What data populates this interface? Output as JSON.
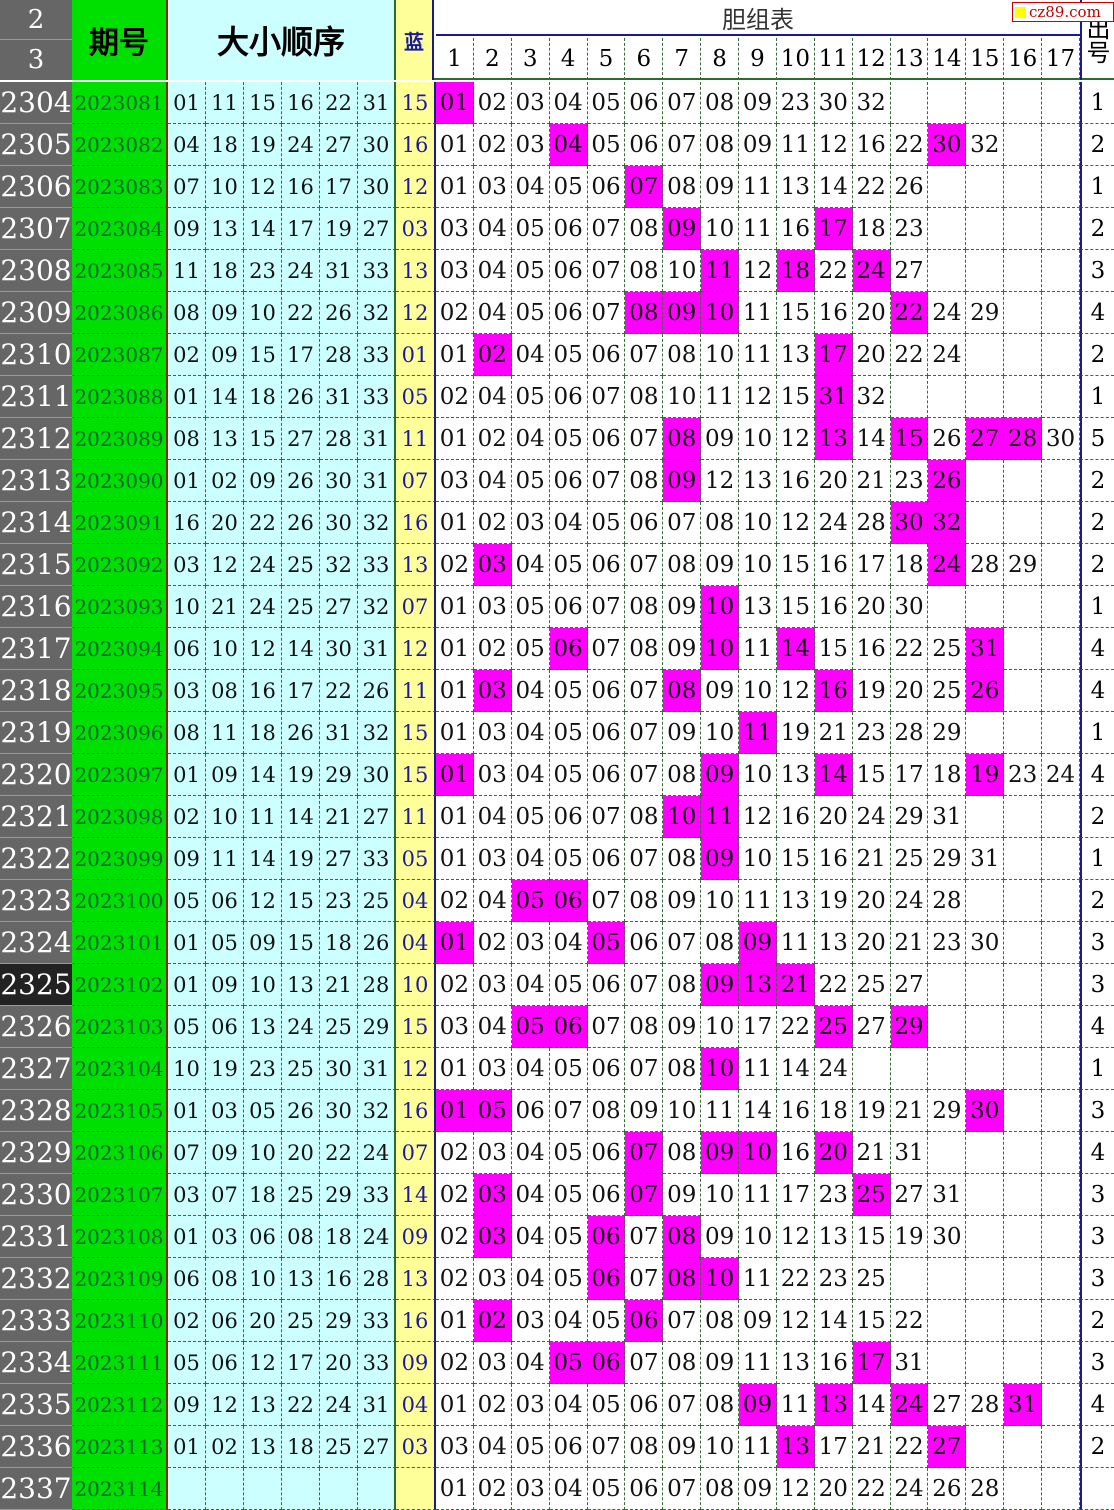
{
  "header": {
    "row_top": "2",
    "row_bottom": "3",
    "period": "期号",
    "sorted": "大小顺序",
    "blue": "蓝",
    "dan_table": "胆组表",
    "hits_col": "出号",
    "watermark": "cz89.com",
    "dan_cols": [
      "1",
      "2",
      "3",
      "4",
      "5",
      "6",
      "7",
      "8",
      "9",
      "10",
      "11",
      "12",
      "13",
      "14",
      "15",
      "16",
      "17"
    ]
  },
  "colors": {
    "period_bg": "#00e000",
    "sorted_bg": "#ccffff",
    "blue_bg": "#ffff99",
    "hit": "#ff00ff",
    "rownum_bg": "#666666",
    "selected_row_bg": "#222222"
  },
  "selected_row": "2325",
  "rows": [
    {
      "n": "2304",
      "p": "2023081",
      "d": [
        "01",
        "11",
        "15",
        "16",
        "22",
        "31"
      ],
      "b": "15",
      "dz": [
        "01",
        "02",
        "03",
        "04",
        "05",
        "06",
        "07",
        "08",
        "09",
        "23",
        "30",
        "32"
      ],
      "h": "1"
    },
    {
      "n": "2305",
      "p": "2023082",
      "d": [
        "04",
        "18",
        "19",
        "24",
        "27",
        "30"
      ],
      "b": "16",
      "dz": [
        "01",
        "02",
        "03",
        "04",
        "05",
        "06",
        "07",
        "08",
        "09",
        "11",
        "12",
        "16",
        "22",
        "30",
        "32"
      ],
      "h": "2"
    },
    {
      "n": "2306",
      "p": "2023083",
      "d": [
        "07",
        "10",
        "12",
        "16",
        "17",
        "30"
      ],
      "b": "12",
      "dz": [
        "01",
        "03",
        "04",
        "05",
        "06",
        "07",
        "08",
        "09",
        "11",
        "13",
        "14",
        "22",
        "26"
      ],
      "h": "1"
    },
    {
      "n": "2307",
      "p": "2023084",
      "d": [
        "09",
        "13",
        "14",
        "17",
        "19",
        "27"
      ],
      "b": "03",
      "dz": [
        "03",
        "04",
        "05",
        "06",
        "07",
        "08",
        "09",
        "10",
        "11",
        "16",
        "17",
        "18",
        "23"
      ],
      "h": "2"
    },
    {
      "n": "2308",
      "p": "2023085",
      "d": [
        "11",
        "18",
        "23",
        "24",
        "31",
        "33"
      ],
      "b": "13",
      "dz": [
        "03",
        "04",
        "05",
        "06",
        "07",
        "08",
        "10",
        "11",
        "12",
        "18",
        "22",
        "24",
        "27"
      ],
      "h": "3"
    },
    {
      "n": "2309",
      "p": "2023086",
      "d": [
        "08",
        "09",
        "10",
        "22",
        "26",
        "32"
      ],
      "b": "12",
      "dz": [
        "02",
        "04",
        "05",
        "06",
        "07",
        "08",
        "09",
        "10",
        "11",
        "15",
        "16",
        "20",
        "22",
        "24",
        "29"
      ],
      "h": "4"
    },
    {
      "n": "2310",
      "p": "2023087",
      "d": [
        "02",
        "09",
        "15",
        "17",
        "28",
        "33"
      ],
      "b": "01",
      "dz": [
        "01",
        "02",
        "04",
        "05",
        "06",
        "07",
        "08",
        "10",
        "11",
        "13",
        "17",
        "20",
        "22",
        "24"
      ],
      "h": "2"
    },
    {
      "n": "2311",
      "p": "2023088",
      "d": [
        "01",
        "14",
        "18",
        "26",
        "31",
        "33"
      ],
      "b": "05",
      "dz": [
        "02",
        "04",
        "05",
        "06",
        "07",
        "08",
        "10",
        "11",
        "12",
        "15",
        "31",
        "32"
      ],
      "h": "1"
    },
    {
      "n": "2312",
      "p": "2023089",
      "d": [
        "08",
        "13",
        "15",
        "27",
        "28",
        "31"
      ],
      "b": "11",
      "dz": [
        "01",
        "02",
        "04",
        "05",
        "06",
        "07",
        "08",
        "09",
        "10",
        "12",
        "13",
        "14",
        "15",
        "26",
        "27",
        "28",
        "30"
      ],
      "h": "5"
    },
    {
      "n": "2313",
      "p": "2023090",
      "d": [
        "01",
        "02",
        "09",
        "26",
        "30",
        "31"
      ],
      "b": "07",
      "dz": [
        "03",
        "04",
        "05",
        "06",
        "07",
        "08",
        "09",
        "12",
        "13",
        "16",
        "20",
        "21",
        "23",
        "26"
      ],
      "h": "2"
    },
    {
      "n": "2314",
      "p": "2023091",
      "d": [
        "16",
        "20",
        "22",
        "26",
        "30",
        "32"
      ],
      "b": "16",
      "dz": [
        "01",
        "02",
        "03",
        "04",
        "05",
        "06",
        "07",
        "08",
        "10",
        "12",
        "24",
        "28",
        "30",
        "32"
      ],
      "h": "2"
    },
    {
      "n": "2315",
      "p": "2023092",
      "d": [
        "03",
        "12",
        "24",
        "25",
        "32",
        "33"
      ],
      "b": "13",
      "dz": [
        "02",
        "03",
        "04",
        "05",
        "06",
        "07",
        "08",
        "09",
        "10",
        "15",
        "16",
        "17",
        "18",
        "24",
        "28",
        "29"
      ],
      "h": "2"
    },
    {
      "n": "2316",
      "p": "2023093",
      "d": [
        "10",
        "21",
        "24",
        "25",
        "27",
        "32"
      ],
      "b": "07",
      "dz": [
        "01",
        "03",
        "05",
        "06",
        "07",
        "08",
        "09",
        "10",
        "13",
        "15",
        "16",
        "20",
        "30"
      ],
      "h": "1"
    },
    {
      "n": "2317",
      "p": "2023094",
      "d": [
        "06",
        "10",
        "12",
        "14",
        "30",
        "31"
      ],
      "b": "12",
      "dz": [
        "01",
        "02",
        "05",
        "06",
        "07",
        "08",
        "09",
        "10",
        "11",
        "14",
        "15",
        "16",
        "22",
        "25",
        "31"
      ],
      "h": "4"
    },
    {
      "n": "2318",
      "p": "2023095",
      "d": [
        "03",
        "08",
        "16",
        "17",
        "22",
        "26"
      ],
      "b": "11",
      "dz": [
        "01",
        "03",
        "04",
        "05",
        "06",
        "07",
        "08",
        "09",
        "10",
        "12",
        "16",
        "19",
        "20",
        "25",
        "26"
      ],
      "h": "4"
    },
    {
      "n": "2319",
      "p": "2023096",
      "d": [
        "08",
        "11",
        "18",
        "26",
        "31",
        "32"
      ],
      "b": "15",
      "dz": [
        "01",
        "03",
        "04",
        "05",
        "06",
        "07",
        "09",
        "10",
        "11",
        "19",
        "21",
        "23",
        "28",
        "29"
      ],
      "h": "1"
    },
    {
      "n": "2320",
      "p": "2023097",
      "d": [
        "01",
        "09",
        "14",
        "19",
        "29",
        "30"
      ],
      "b": "15",
      "dz": [
        "01",
        "03",
        "04",
        "05",
        "06",
        "07",
        "08",
        "09",
        "10",
        "13",
        "14",
        "15",
        "17",
        "18",
        "19",
        "23",
        "24"
      ],
      "h": "4"
    },
    {
      "n": "2321",
      "p": "2023098",
      "d": [
        "02",
        "10",
        "11",
        "14",
        "21",
        "27"
      ],
      "b": "11",
      "dz": [
        "01",
        "04",
        "05",
        "06",
        "07",
        "08",
        "10",
        "11",
        "12",
        "16",
        "20",
        "24",
        "29",
        "31"
      ],
      "h": "2"
    },
    {
      "n": "2322",
      "p": "2023099",
      "d": [
        "09",
        "11",
        "14",
        "19",
        "27",
        "33"
      ],
      "b": "05",
      "dz": [
        "01",
        "03",
        "04",
        "05",
        "06",
        "07",
        "08",
        "09",
        "10",
        "15",
        "16",
        "21",
        "25",
        "29",
        "31"
      ],
      "h": "1"
    },
    {
      "n": "2323",
      "p": "2023100",
      "d": [
        "05",
        "06",
        "12",
        "15",
        "23",
        "25"
      ],
      "b": "04",
      "dz": [
        "02",
        "04",
        "05",
        "06",
        "07",
        "08",
        "09",
        "10",
        "11",
        "13",
        "19",
        "20",
        "24",
        "28"
      ],
      "h": "2"
    },
    {
      "n": "2324",
      "p": "2023101",
      "d": [
        "01",
        "05",
        "09",
        "15",
        "18",
        "26"
      ],
      "b": "04",
      "dz": [
        "01",
        "02",
        "03",
        "04",
        "05",
        "06",
        "07",
        "08",
        "09",
        "11",
        "13",
        "20",
        "21",
        "23",
        "30"
      ],
      "h": "3"
    },
    {
      "n": "2325",
      "p": "2023102",
      "d": [
        "01",
        "09",
        "10",
        "13",
        "21",
        "28"
      ],
      "b": "10",
      "dz": [
        "02",
        "03",
        "04",
        "05",
        "06",
        "07",
        "08",
        "09",
        "13",
        "21",
        "22",
        "25",
        "27"
      ],
      "h": "3"
    },
    {
      "n": "2326",
      "p": "2023103",
      "d": [
        "05",
        "06",
        "13",
        "24",
        "25",
        "29"
      ],
      "b": "15",
      "dz": [
        "03",
        "04",
        "05",
        "06",
        "07",
        "08",
        "09",
        "10",
        "17",
        "22",
        "25",
        "27",
        "29"
      ],
      "h": "4"
    },
    {
      "n": "2327",
      "p": "2023104",
      "d": [
        "10",
        "19",
        "23",
        "25",
        "30",
        "31"
      ],
      "b": "12",
      "dz": [
        "01",
        "03",
        "04",
        "05",
        "06",
        "07",
        "08",
        "10",
        "11",
        "14",
        "24"
      ],
      "h": "1"
    },
    {
      "n": "2328",
      "p": "2023105",
      "d": [
        "01",
        "03",
        "05",
        "26",
        "30",
        "32"
      ],
      "b": "16",
      "dz": [
        "01",
        "05",
        "06",
        "07",
        "08",
        "09",
        "10",
        "11",
        "14",
        "16",
        "18",
        "19",
        "21",
        "29",
        "30"
      ],
      "h": "3"
    },
    {
      "n": "2329",
      "p": "2023106",
      "d": [
        "07",
        "09",
        "10",
        "20",
        "22",
        "24"
      ],
      "b": "07",
      "dz": [
        "02",
        "03",
        "04",
        "05",
        "06",
        "07",
        "08",
        "09",
        "10",
        "16",
        "20",
        "21",
        "31"
      ],
      "h": "4"
    },
    {
      "n": "2330",
      "p": "2023107",
      "d": [
        "03",
        "07",
        "18",
        "25",
        "29",
        "33"
      ],
      "b": "14",
      "dz": [
        "02",
        "03",
        "04",
        "05",
        "06",
        "07",
        "09",
        "10",
        "11",
        "17",
        "23",
        "25",
        "27",
        "31"
      ],
      "h": "3"
    },
    {
      "n": "2331",
      "p": "2023108",
      "d": [
        "01",
        "03",
        "06",
        "08",
        "18",
        "24"
      ],
      "b": "09",
      "dz": [
        "02",
        "03",
        "04",
        "05",
        "06",
        "07",
        "08",
        "09",
        "10",
        "12",
        "13",
        "15",
        "19",
        "30"
      ],
      "h": "3"
    },
    {
      "n": "2332",
      "p": "2023109",
      "d": [
        "06",
        "08",
        "10",
        "13",
        "16",
        "28"
      ],
      "b": "13",
      "dz": [
        "02",
        "03",
        "04",
        "05",
        "06",
        "07",
        "08",
        "10",
        "11",
        "22",
        "23",
        "25"
      ],
      "h": "3"
    },
    {
      "n": "2333",
      "p": "2023110",
      "d": [
        "02",
        "06",
        "20",
        "25",
        "29",
        "33"
      ],
      "b": "16",
      "dz": [
        "01",
        "02",
        "03",
        "04",
        "05",
        "06",
        "07",
        "08",
        "09",
        "12",
        "14",
        "15",
        "22"
      ],
      "h": "2"
    },
    {
      "n": "2334",
      "p": "2023111",
      "d": [
        "05",
        "06",
        "12",
        "17",
        "20",
        "33"
      ],
      "b": "09",
      "dz": [
        "02",
        "03",
        "04",
        "05",
        "06",
        "07",
        "08",
        "09",
        "11",
        "13",
        "16",
        "17",
        "31"
      ],
      "h": "3"
    },
    {
      "n": "2335",
      "p": "2023112",
      "d": [
        "09",
        "12",
        "13",
        "22",
        "24",
        "31"
      ],
      "b": "04",
      "dz": [
        "01",
        "02",
        "03",
        "04",
        "05",
        "06",
        "07",
        "08",
        "09",
        "11",
        "13",
        "14",
        "24",
        "27",
        "28",
        "31"
      ],
      "h": "4"
    },
    {
      "n": "2336",
      "p": "2023113",
      "d": [
        "01",
        "02",
        "13",
        "18",
        "25",
        "27"
      ],
      "b": "03",
      "dz": [
        "03",
        "04",
        "05",
        "06",
        "07",
        "08",
        "09",
        "10",
        "11",
        "13",
        "17",
        "21",
        "22",
        "27"
      ],
      "h": "2"
    },
    {
      "n": "2337",
      "p": "2023114",
      "d": [],
      "b": "",
      "dz": [
        "01",
        "02",
        "03",
        "04",
        "05",
        "06",
        "07",
        "08",
        "09",
        "12",
        "20",
        "22",
        "24",
        "26",
        "28"
      ],
      "h": ""
    }
  ]
}
